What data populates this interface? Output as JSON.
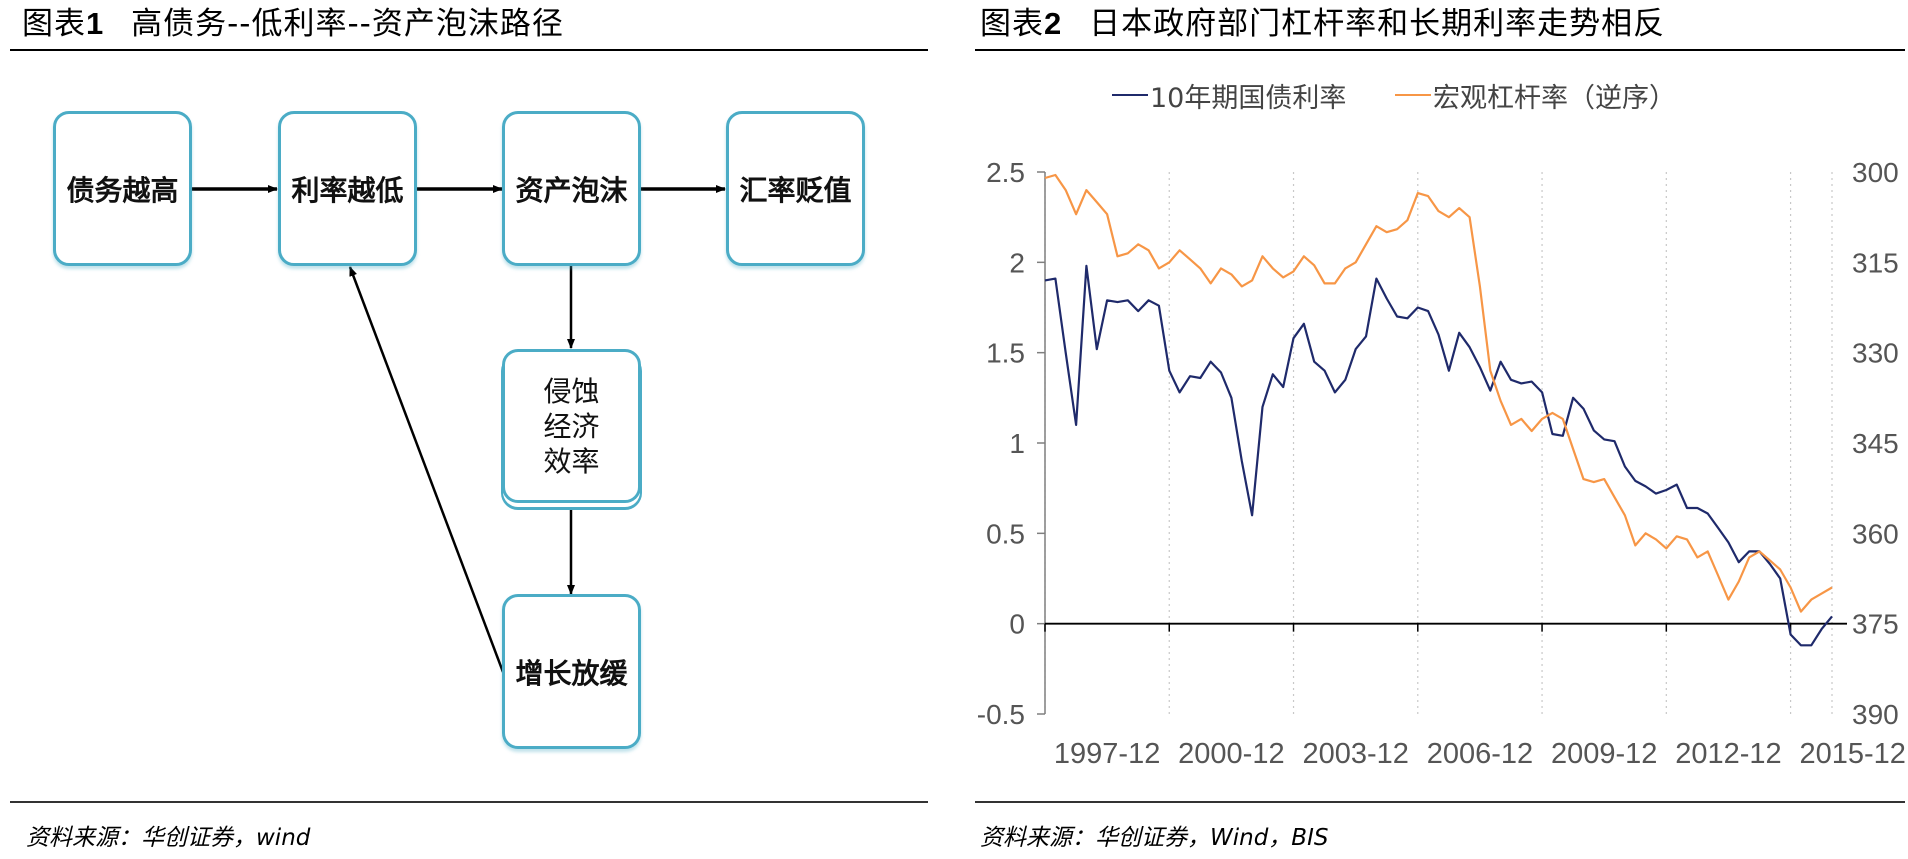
{
  "left_panel": {
    "title_prefix": "图表",
    "title_num": "1",
    "title_text": "高债务--低利率--资产泡沫路径",
    "source": "资料来源：华创证券，wind",
    "nodes": {
      "debt": "债务越高",
      "rate": "利率越低",
      "bubble": "资产泡沫",
      "fx": "汇率贬值",
      "erode": [
        "侵蚀",
        "经济",
        "效率"
      ],
      "growth": "增长放缓"
    },
    "colors": {
      "node_border": "#4bacc6",
      "arrow": "#000000"
    }
  },
  "right_panel": {
    "title_prefix": "图表",
    "title_num": "2",
    "title_text": "日本政府部门杠杆率和长期利率走势相反",
    "source": "资料来源：华创证券，Wind，BIS"
  },
  "chart_data": {
    "type": "line",
    "title": "",
    "legend_position": "top",
    "grid": "vertical dotted",
    "x_tick_labels": [
      "1997-12",
      "2000-12",
      "2003-12",
      "2006-12",
      "2009-12",
      "2012-12",
      "2015-12"
    ],
    "x_range": [
      "1997-12",
      "2016-12"
    ],
    "left_axis": {
      "range": [
        -0.5,
        2.5
      ],
      "ticks": [
        "-0.5",
        "0",
        "0.5",
        "1",
        "1.5",
        "2",
        "2.5"
      ]
    },
    "right_axis": {
      "range": [
        300,
        390
      ],
      "reversed": true,
      "ticks": [
        "300",
        "315",
        "330",
        "345",
        "360",
        "375",
        "390"
      ]
    },
    "series": [
      {
        "name": "10年期国债利率",
        "color": "#1f2a6b",
        "axis": "left",
        "x": [
          "1997-12",
          "1998-03",
          "1998-06",
          "1998-09",
          "1998-12",
          "1999-03",
          "1999-06",
          "1999-09",
          "1999-12",
          "2000-03",
          "2000-06",
          "2000-09",
          "2000-12",
          "2001-03",
          "2001-06",
          "2001-09",
          "2001-12",
          "2002-03",
          "2002-06",
          "2002-09",
          "2002-12",
          "2003-03",
          "2003-06",
          "2003-09",
          "2003-12",
          "2004-03",
          "2004-06",
          "2004-09",
          "2004-12",
          "2005-03",
          "2005-06",
          "2005-09",
          "2005-12",
          "2006-03",
          "2006-06",
          "2006-09",
          "2006-12",
          "2007-03",
          "2007-06",
          "2007-09",
          "2007-12",
          "2008-03",
          "2008-06",
          "2008-09",
          "2008-12",
          "2009-03",
          "2009-06",
          "2009-09",
          "2009-12",
          "2010-03",
          "2010-06",
          "2010-09",
          "2010-12",
          "2011-03",
          "2011-06",
          "2011-09",
          "2011-12",
          "2012-03",
          "2012-06",
          "2012-09",
          "2012-12",
          "2013-03",
          "2013-06",
          "2013-09",
          "2013-12",
          "2014-03",
          "2014-06",
          "2014-09",
          "2014-12",
          "2015-03",
          "2015-06",
          "2015-09",
          "2015-12",
          "2016-03",
          "2016-06",
          "2016-09",
          "2016-12"
        ],
        "values": [
          1.9,
          1.91,
          1.5,
          1.1,
          1.98,
          1.52,
          1.79,
          1.78,
          1.79,
          1.73,
          1.79,
          1.76,
          1.4,
          1.28,
          1.37,
          1.36,
          1.45,
          1.39,
          1.25,
          0.9,
          0.6,
          1.2,
          1.38,
          1.31,
          1.58,
          1.66,
          1.45,
          1.4,
          1.28,
          1.35,
          1.52,
          1.59,
          1.91,
          1.8,
          1.7,
          1.69,
          1.75,
          1.73,
          1.6,
          1.4,
          1.61,
          1.53,
          1.42,
          1.29,
          1.45,
          1.35,
          1.33,
          1.34,
          1.28,
          1.05,
          1.04,
          1.25,
          1.19,
          1.07,
          1.02,
          1.01,
          0.87,
          0.79,
          0.76,
          0.72,
          0.74,
          0.77,
          0.64,
          0.64,
          0.61,
          0.53,
          0.45,
          0.34,
          0.4,
          0.4,
          0.33,
          0.25,
          -0.06,
          -0.12,
          -0.12,
          -0.03,
          0.04
        ]
      },
      {
        "name": "宏观杠杆率（逆序）",
        "color": "#f79646",
        "axis": "right",
        "x": [
          "1997-12",
          "1998-03",
          "1998-06",
          "1998-09",
          "1998-12",
          "1999-03",
          "1999-06",
          "1999-09",
          "1999-12",
          "2000-03",
          "2000-06",
          "2000-09",
          "2000-12",
          "2001-03",
          "2001-06",
          "2001-09",
          "2001-12",
          "2002-03",
          "2002-06",
          "2002-09",
          "2002-12",
          "2003-03",
          "2003-06",
          "2003-09",
          "2003-12",
          "2004-03",
          "2004-06",
          "2004-09",
          "2004-12",
          "2005-03",
          "2005-06",
          "2005-09",
          "2005-12",
          "2006-03",
          "2006-06",
          "2006-09",
          "2006-12",
          "2007-03",
          "2007-06",
          "2007-09",
          "2007-12",
          "2008-03",
          "2008-06",
          "2008-09",
          "2008-12",
          "2009-03",
          "2009-06",
          "2009-09",
          "2009-12",
          "2010-03",
          "2010-06",
          "2010-09",
          "2010-12",
          "2011-03",
          "2011-06",
          "2011-09",
          "2011-12",
          "2012-03",
          "2012-06",
          "2012-09",
          "2012-12",
          "2013-03",
          "2013-06",
          "2013-09",
          "2013-12",
          "2014-03",
          "2014-06",
          "2014-09",
          "2014-12",
          "2015-03",
          "2015-06",
          "2015-09",
          "2015-12",
          "2016-03",
          "2016-06",
          "2016-09",
          "2016-12"
        ],
        "values": [
          301,
          300.5,
          303,
          307,
          303,
          305,
          307,
          314,
          313.5,
          312,
          313,
          316,
          315,
          313,
          314.5,
          316,
          318.5,
          316,
          317,
          319,
          318,
          314,
          316,
          317.5,
          316.5,
          314,
          315.5,
          318.5,
          318.5,
          316,
          315,
          312,
          309,
          310,
          309.5,
          308,
          303.5,
          304,
          306.5,
          307.5,
          306,
          307.5,
          319,
          333,
          338,
          342,
          341,
          343,
          341,
          340,
          341,
          346,
          351,
          351.5,
          351,
          354,
          357,
          362,
          360,
          361,
          362.5,
          360.5,
          361,
          364,
          363,
          367,
          371,
          368,
          364,
          363,
          364.5,
          366,
          369,
          373,
          371,
          370,
          369
        ]
      }
    ]
  }
}
